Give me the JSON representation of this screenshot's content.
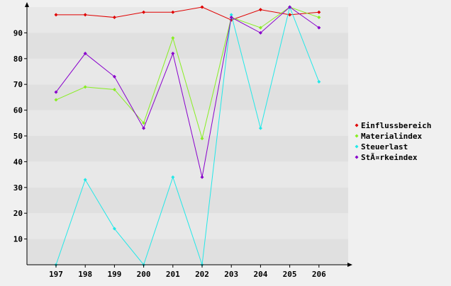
{
  "chart_data": {
    "type": "line",
    "title": "",
    "xlabel": "",
    "ylabel": "",
    "categories": [
      "197",
      "198",
      "199",
      "200",
      "201",
      "202",
      "203",
      "204",
      "205",
      "206"
    ],
    "ylim": [
      0,
      100
    ],
    "yticks": [
      10,
      20,
      30,
      40,
      50,
      60,
      70,
      80,
      90
    ],
    "grid": "horizontal bands",
    "legend": "right",
    "colors": {
      "background": "#f0f0f0",
      "band_dark": "#e0e0e0",
      "band_light": "#e8e8e8",
      "axis": "#000000"
    },
    "series": [
      {
        "name": "Einflussbereich",
        "color": "#e00000",
        "values": [
          97,
          97,
          96,
          98,
          98,
          100,
          95,
          99,
          97,
          98
        ]
      },
      {
        "name": "Materialindex",
        "color": "#88ee22",
        "values": [
          64,
          69,
          68,
          55,
          88,
          49,
          96,
          92,
          100,
          96
        ]
      },
      {
        "name": "Steuerlast",
        "color": "#22e8e8",
        "values": [
          0,
          33,
          14,
          0,
          34,
          0,
          97,
          53,
          100,
          71
        ]
      },
      {
        "name": "StÃ¤rkeindex",
        "color": "#8800cc",
        "values": [
          67,
          82,
          73,
          53,
          82,
          34,
          96,
          90,
          100,
          92
        ]
      }
    ]
  }
}
